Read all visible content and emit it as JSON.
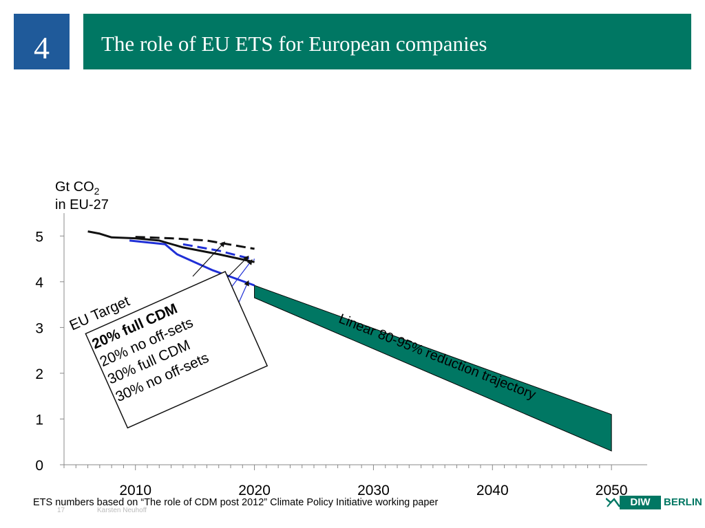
{
  "slide": {
    "number": "4",
    "title": "The role of EU ETS for European companies",
    "footnote": "ETS numbers based on “The role of CDM post 2012” Climate Policy Initiative working paper",
    "page_number": "17",
    "author": "Karsten Neuhoff",
    "logo": {
      "box_text": "DIW",
      "text": "BERLIN"
    }
  },
  "colors": {
    "accent_green": "#007763",
    "number_blue": "#1f5a9a",
    "series_blue": "#1f2fd6",
    "series_black": "#111111"
  },
  "chart_data": {
    "type": "line",
    "ylabel": {
      "main": "Gt CO",
      "sub": "2",
      "line2": "in EU-27"
    },
    "xlim": [
      2004,
      2053
    ],
    "ylim": [
      0,
      5.5
    ],
    "x_ticks": [
      2010,
      2020,
      2030,
      2040,
      2050
    ],
    "y_ticks": [
      0,
      1,
      2,
      3,
      4,
      5
    ],
    "series": [
      {
        "name": "EU Target",
        "style": "dashed",
        "color": "#111111",
        "x": [
          2010,
          2013,
          2016,
          2020
        ],
        "y": [
          4.98,
          4.95,
          4.9,
          4.72
        ]
      },
      {
        "name": "20% full CDM",
        "style": "solid",
        "color": "#111111",
        "x": [
          2006,
          2007,
          2008,
          2010,
          2012,
          2014,
          2017,
          2020
        ],
        "y": [
          5.1,
          5.05,
          4.97,
          4.95,
          4.9,
          4.75,
          4.6,
          4.43
        ]
      },
      {
        "name": "20% no off-sets",
        "style": "dashed",
        "color": "#1f2fd6",
        "x": [
          2014,
          2017,
          2020
        ],
        "y": [
          4.82,
          4.68,
          4.48
        ]
      },
      {
        "name": "30% full CDM",
        "style": "solid",
        "color": "#1f2fd6",
        "x": [
          2009.5,
          2012.5,
          2013.5,
          2016.5,
          2020
        ],
        "y": [
          4.9,
          4.82,
          4.6,
          4.25,
          3.92
        ]
      }
    ],
    "legend": {
      "title": "EU Target",
      "items": [
        "20% full CDM",
        "20% no off-sets",
        "30% full CDM",
        "30% no off-sets"
      ],
      "bold_item": "20% full CDM"
    },
    "band": {
      "label": "Linear 80-95% reduction trajectory",
      "start_year": 2020,
      "start_upper": 3.92,
      "start_lower": 3.65,
      "end_year": 2050,
      "end_upper": 1.1,
      "end_lower": 0.3,
      "color": "#007763"
    },
    "legend_pointers": [
      {
        "x": 2017.5,
        "y": 4.87
      },
      {
        "x": 2019.5,
        "y": 4.56
      },
      {
        "x": 2019.8,
        "y": 4.48
      },
      {
        "x": 2019.5,
        "y": 4.02
      }
    ]
  }
}
